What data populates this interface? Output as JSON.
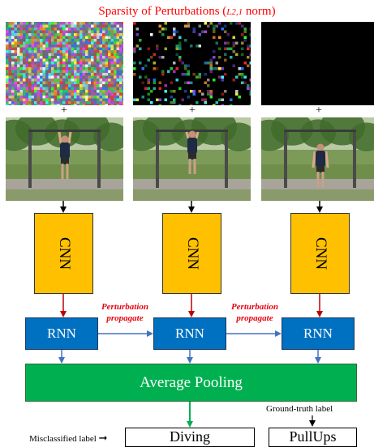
{
  "title": {
    "prefix": "Sparsity of Perturbations (",
    "norm": "L2,1",
    "suffix": " norm)"
  },
  "columns": [
    {
      "plus": "+",
      "cnn_label": "CNN",
      "rnn_label": "RNN",
      "noise_density": "dense"
    },
    {
      "plus": "+",
      "cnn_label": "CNN",
      "rnn_label": "RNN",
      "noise_density": "sparse"
    },
    {
      "plus": "+",
      "cnn_label": "CNN",
      "rnn_label": "RNN",
      "noise_density": "none"
    }
  ],
  "propagate": [
    {
      "line1": "Perturbation",
      "line2": "propagate"
    },
    {
      "line1": "Perturbation",
      "line2": "propagate"
    }
  ],
  "pooling_label": "Average Pooling",
  "outputs": {
    "misclassified_caption": "Misclassified label",
    "misclassified_value": "Diving",
    "groundtruth_caption": "Ground-truth label",
    "groundtruth_value": "PullUps"
  },
  "colors": {
    "title": "#ff0000",
    "cnn": "#ffc000",
    "rnn": "#0070c0",
    "pooling": "#00b050",
    "cnn_to_rnn_arrow": "#c00000",
    "rnn_arrow": "#4472c4",
    "pool_arrow": "#00b050",
    "propagate_text": "#e30613"
  }
}
